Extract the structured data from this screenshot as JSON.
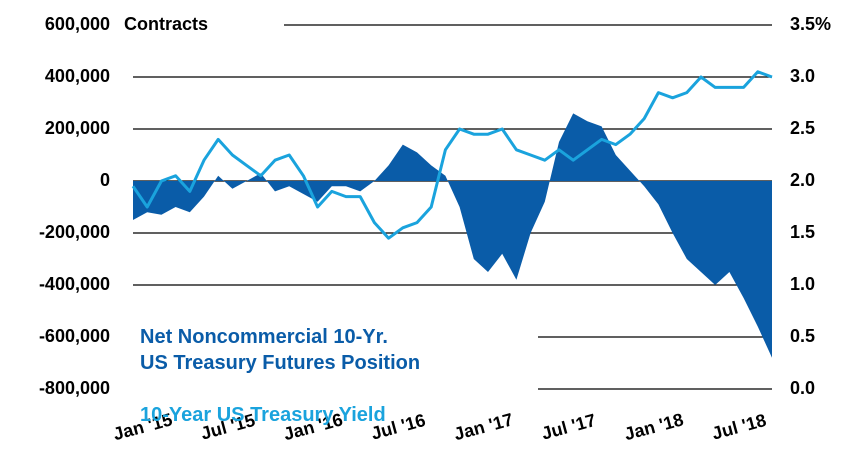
{
  "chart_data": {
    "type": "area-line",
    "y_label": "Contracts",
    "x": [
      0,
      1,
      2,
      3,
      4,
      5,
      6,
      7,
      8,
      9,
      10,
      11,
      12,
      13,
      14,
      15,
      16,
      17,
      18,
      19,
      20,
      21,
      22,
      23,
      24,
      25,
      26,
      27,
      28,
      29,
      30,
      31,
      32,
      33,
      34,
      35,
      36,
      37,
      38,
      39,
      40,
      41,
      42,
      43,
      44,
      45
    ],
    "xlim": [
      0,
      45
    ],
    "xticks": [
      {
        "value": 0,
        "label": "Jan '15"
      },
      {
        "value": 6,
        "label": "Jul '15"
      },
      {
        "value": 12,
        "label": "Jan '16"
      },
      {
        "value": 18,
        "label": "Jul '16"
      },
      {
        "value": 24,
        "label": "Jan '17"
      },
      {
        "value": 30,
        "label": "Jul '17"
      },
      {
        "value": 36,
        "label": "Jan '18"
      },
      {
        "value": 42,
        "label": "Jul '18"
      }
    ],
    "ylim": [
      -800000,
      600000
    ],
    "yticks": [
      {
        "value": 600000,
        "label": "600,000"
      },
      {
        "value": 400000,
        "label": "400,000"
      },
      {
        "value": 200000,
        "label": "200,000"
      },
      0,
      {
        "value": -200000,
        "label": "-200,000"
      },
      {
        "value": -400000,
        "label": "-400,000"
      },
      {
        "value": -600000,
        "label": "-600,000"
      },
      {
        "value": -800000,
        "label": "-800,000"
      }
    ],
    "y2lim": [
      0,
      3.5
    ],
    "y2ticks": [
      {
        "value": 3.5,
        "label": "3.5%"
      },
      {
        "value": 3.0,
        "label": "3.0"
      },
      {
        "value": 2.5,
        "label": "2.5"
      },
      {
        "value": 2.0,
        "label": "2.0"
      },
      {
        "value": 1.5,
        "label": "1.5"
      },
      {
        "value": 1.0,
        "label": "1.0"
      },
      {
        "value": 0.5,
        "label": "0.5"
      },
      {
        "value": 0,
        "label": "0.0"
      }
    ],
    "grid": true,
    "series": [
      {
        "name": "Net Noncommercial 10-Yr.\nUS Treasury Futures Position",
        "color": "#0a5ca8",
        "kind": "area",
        "values": [
          -150000,
          -120000,
          -130000,
          -100000,
          -120000,
          -60000,
          20000,
          -30000,
          0,
          30000,
          -40000,
          -20000,
          -50000,
          -80000,
          -20000,
          -20000,
          -40000,
          0,
          60000,
          140000,
          110000,
          60000,
          20000,
          -100000,
          -300000,
          -350000,
          -280000,
          -380000,
          -200000,
          -80000,
          150000,
          260000,
          230000,
          210000,
          100000,
          40000,
          -20000,
          -90000,
          -200000,
          -300000,
          -350000,
          -400000,
          -350000,
          -450000,
          -560000,
          -680000
        ]
      },
      {
        "name": "10-Year US Treasury Yield",
        "color": "#1aa3dd",
        "kind": "line",
        "axis": "y2",
        "values": [
          1.95,
          1.75,
          2.0,
          2.05,
          1.9,
          2.2,
          2.4,
          2.25,
          2.15,
          2.05,
          2.2,
          2.25,
          2.05,
          1.75,
          1.9,
          1.85,
          1.85,
          1.6,
          1.45,
          1.55,
          1.6,
          1.75,
          2.3,
          2.5,
          2.45,
          2.45,
          2.5,
          2.3,
          2.25,
          2.2,
          2.3,
          2.2,
          2.3,
          2.4,
          2.35,
          2.45,
          2.6,
          2.85,
          2.8,
          2.85,
          3.0,
          2.9,
          2.9,
          2.9,
          3.05,
          3.0
        ]
      }
    ]
  }
}
